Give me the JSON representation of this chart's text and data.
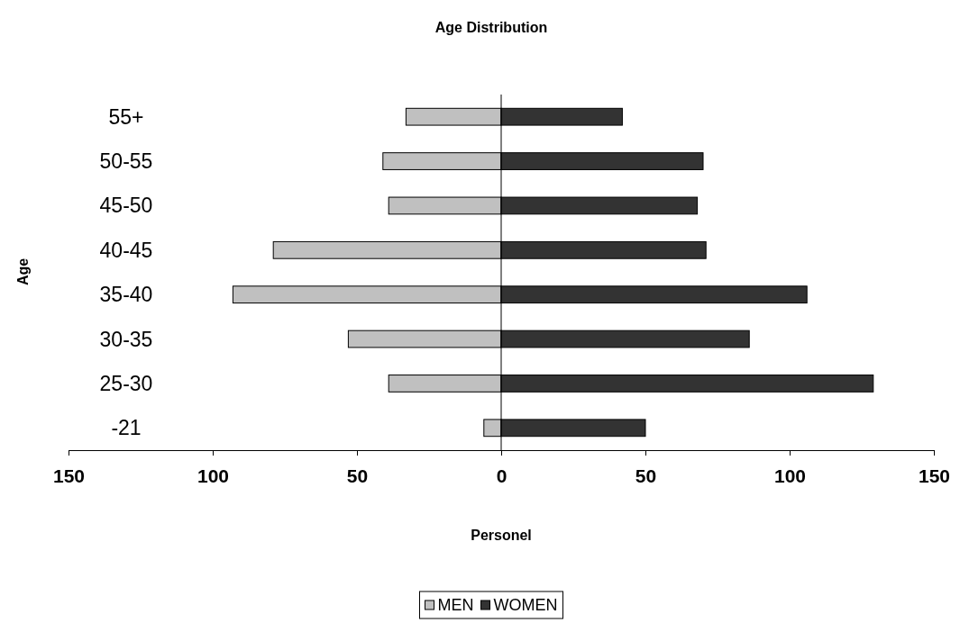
{
  "chart_data": {
    "type": "bar",
    "orientation": "horizontal",
    "stacked": true,
    "title": "Age Distribution",
    "xlabel": "Personel",
    "ylabel": "Age",
    "categories": [
      "55+",
      "50-55",
      "45-50",
      "40-45",
      "35-40",
      "30-35",
      "25-30",
      "-21"
    ],
    "series": [
      {
        "name": "MEN",
        "color": "#c0c0c0",
        "values": [
          -33,
          -41,
          -39,
          -79,
          -93,
          -53,
          -39,
          -6
        ]
      },
      {
        "name": "WOMEN",
        "color": "#333333",
        "values": [
          42,
          70,
          68,
          71,
          106,
          86,
          129,
          50
        ]
      }
    ],
    "xlim": [
      -150,
      150
    ],
    "xticks": [
      {
        "value": -150,
        "label": "150"
      },
      {
        "value": -100,
        "label": "100"
      },
      {
        "value": -50,
        "label": "50"
      },
      0,
      50,
      100,
      150
    ],
    "legend": "bottom"
  }
}
